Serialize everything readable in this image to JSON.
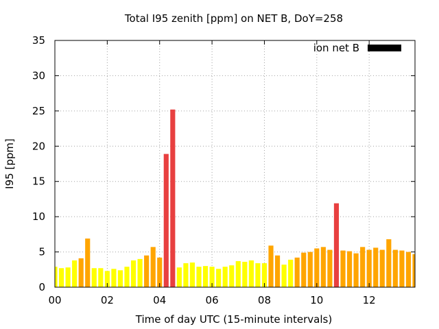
{
  "chart_data": {
    "type": "bar",
    "title": "Total I95 zenith [ppm] on NET B, DoY=258",
    "xlabel": "Time of day UTC (15-minute intervals)",
    "ylabel": "I95 [ppm]",
    "xlim": [
      0,
      13.75
    ],
    "ylim": [
      0,
      35
    ],
    "xticks": [
      0,
      2,
      4,
      6,
      8,
      10,
      12
    ],
    "xtick_labels": [
      "00",
      "02",
      "04",
      "06",
      "08",
      "10",
      "12"
    ],
    "yticks": [
      0,
      5,
      10,
      15,
      20,
      25,
      30,
      35
    ],
    "ytick_labels": [
      "0",
      "5",
      "10",
      "15",
      "20",
      "25",
      "30",
      "35"
    ],
    "grid": true,
    "legend": {
      "position": "top-right",
      "entries": [
        {
          "label": "ion net B",
          "color": "#000000"
        }
      ]
    },
    "bar_interval_hours": 0.25,
    "level_colors": {
      "low": "#ffff00",
      "medium": "#ffa500",
      "high": "#e84040"
    },
    "series": [
      {
        "name": "ion net B",
        "x": [
          0,
          0.25,
          0.5,
          0.75,
          1,
          1.25,
          1.5,
          1.75,
          2,
          2.25,
          2.5,
          2.75,
          3,
          3.25,
          3.5,
          3.75,
          4,
          4.25,
          4.5,
          4.75,
          5,
          5.25,
          5.5,
          5.75,
          6,
          6.25,
          6.5,
          6.75,
          7,
          7.25,
          7.5,
          7.75,
          8,
          8.25,
          8.5,
          8.75,
          9,
          9.25,
          9.5,
          9.75,
          10,
          10.25,
          10.5,
          10.75,
          11,
          11.25,
          11.5,
          11.75,
          12,
          12.25,
          12.5,
          12.75,
          13,
          13.25,
          13.5,
          13.75
        ],
        "values": [
          2.9,
          2.7,
          2.8,
          3.8,
          4.1,
          6.9,
          2.7,
          2.7,
          2.3,
          2.6,
          2.4,
          2.9,
          3.8,
          4.0,
          4.5,
          5.7,
          4.2,
          18.9,
          25.2,
          2.8,
          3.4,
          3.5,
          2.9,
          3.0,
          2.9,
          2.6,
          2.9,
          3.1,
          3.7,
          3.6,
          3.8,
          3.4,
          3.4,
          5.9,
          4.5,
          3.2,
          3.9,
          4.2,
          4.9,
          5.0,
          5.5,
          5.7,
          5.3,
          11.9,
          5.2,
          5.1,
          4.8,
          5.7,
          5.3,
          5.6,
          5.3,
          6.8,
          5.3,
          5.2,
          5.0,
          4.7
        ],
        "levels": [
          "low",
          "low",
          "low",
          "low",
          "medium",
          "medium",
          "low",
          "low",
          "low",
          "low",
          "low",
          "low",
          "low",
          "low",
          "medium",
          "medium",
          "medium",
          "high",
          "high",
          "low",
          "low",
          "low",
          "low",
          "low",
          "low",
          "low",
          "low",
          "low",
          "low",
          "low",
          "low",
          "low",
          "low",
          "medium",
          "medium",
          "low",
          "low",
          "medium",
          "medium",
          "medium",
          "medium",
          "medium",
          "medium",
          "high",
          "medium",
          "medium",
          "medium",
          "medium",
          "medium",
          "medium",
          "medium",
          "medium",
          "medium",
          "medium",
          "medium",
          "medium"
        ]
      }
    ]
  }
}
